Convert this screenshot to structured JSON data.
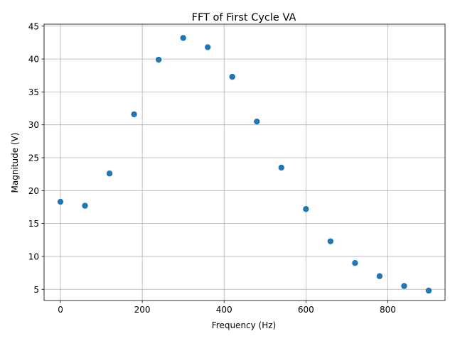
{
  "chart_data": {
    "type": "scatter",
    "title": "FFT of First Cycle VA",
    "xlabel": "Frequency (Hz)",
    "ylabel": "Magnitude (V)",
    "xlim": [
      -40,
      940
    ],
    "ylim": [
      3.3,
      45.3
    ],
    "xticks": [
      0,
      200,
      400,
      600,
      800
    ],
    "yticks": [
      5,
      10,
      15,
      20,
      25,
      30,
      35,
      40,
      45
    ],
    "grid": true,
    "marker_color": "#1f77b4",
    "series": [
      {
        "x": [
          0,
          60,
          120,
          180,
          240,
          300,
          360,
          420,
          480,
          540,
          600,
          660,
          720,
          780,
          840,
          900
        ],
        "y": [
          18.3,
          17.7,
          22.6,
          31.6,
          39.9,
          43.2,
          41.8,
          37.3,
          30.5,
          23.5,
          17.2,
          12.3,
          9.0,
          7.0,
          5.5,
          4.8
        ]
      }
    ]
  }
}
